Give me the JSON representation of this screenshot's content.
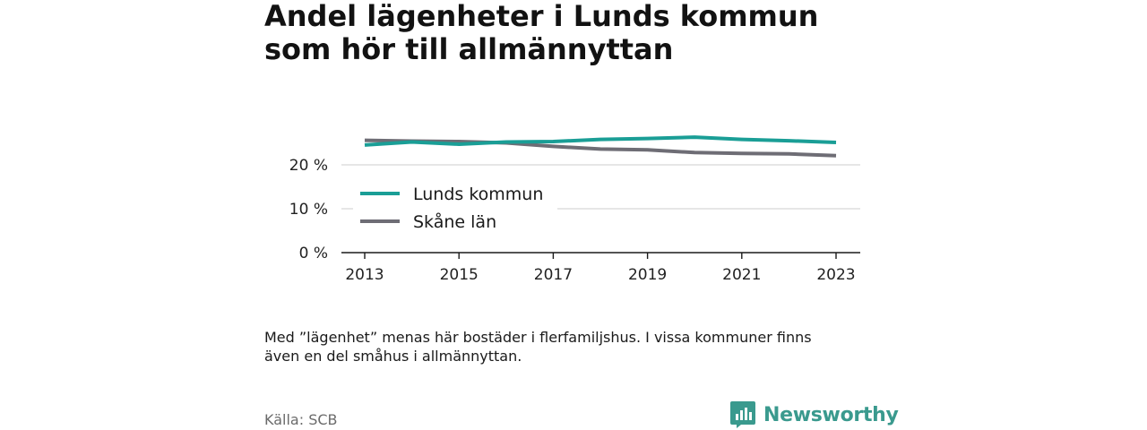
{
  "title": {
    "line1": "Andel lägenheter i Lunds kommun",
    "line2": "som hör till allmännyttan"
  },
  "note": {
    "line1": "Med ”lägenhet” menas här bostäder i flerfamiljshus. I vissa kommuner finns",
    "line2": "även en del småhus i allmännyttan."
  },
  "source": "Källa: SCB",
  "brand": {
    "name": "Newsworthy",
    "icon": "newsworthy-logo-icon",
    "color": "#3a9a8e"
  },
  "chart_data": {
    "type": "line",
    "x": [
      2013,
      2014,
      2015,
      2016,
      2017,
      2018,
      2019,
      2020,
      2021,
      2022,
      2023
    ],
    "series": [
      {
        "name": "Lunds kommun",
        "color": "#1a9e96",
        "values": [
          24.5,
          25.2,
          24.7,
          25.2,
          25.3,
          25.8,
          26.0,
          26.3,
          25.8,
          25.5,
          25.1
        ]
      },
      {
        "name": "Skåne län",
        "color": "#6e6d75",
        "values": [
          25.6,
          25.4,
          25.3,
          25.0,
          24.2,
          23.6,
          23.4,
          22.8,
          22.6,
          22.5,
          22.1
        ]
      }
    ],
    "y_ticks": [
      {
        "value": 0,
        "label": "0 %"
      },
      {
        "value": 10,
        "label": "10 %"
      },
      {
        "value": 20,
        "label": "20 %"
      }
    ],
    "x_ticks": [
      {
        "value": 2013,
        "label": "2013"
      },
      {
        "value": 2015,
        "label": "2015"
      },
      {
        "value": 2017,
        "label": "2017"
      },
      {
        "value": 2019,
        "label": "2019"
      },
      {
        "value": 2021,
        "label": "2021"
      },
      {
        "value": 2023,
        "label": "2023"
      }
    ],
    "ylim": [
      0,
      28
    ],
    "xlim": [
      2013,
      2023
    ],
    "grid": "horizontal",
    "legend_position": "center-left"
  }
}
